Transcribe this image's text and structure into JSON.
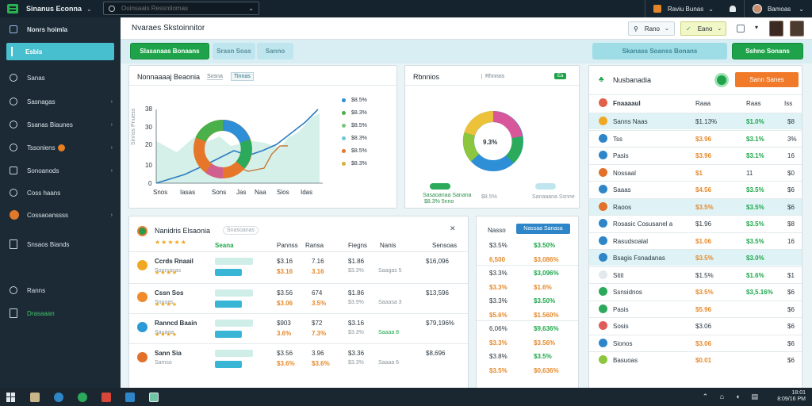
{
  "topbar": {
    "app_title": "Sinanus Econna",
    "search_placeholder": "Ouinsaais Ressntiomas",
    "right_item_1": "Raviu Bunas",
    "right_item_2": "Bamoas"
  },
  "sidebar": {
    "items": [
      {
        "label": "Nonrs hoimla"
      },
      {
        "label": "Esbis"
      },
      {
        "label": "Sanas"
      },
      {
        "label": "Sasnagas"
      },
      {
        "label": "Ssanas Biaunes"
      },
      {
        "label": "Tssoniens"
      },
      {
        "label": "Sonoanods"
      },
      {
        "label": "Coss haans"
      },
      {
        "label": "Cossaoanssss"
      },
      {
        "label": "Snsaos Biands"
      },
      {
        "label": "Ranns"
      },
      {
        "label": "Drasaaan"
      }
    ]
  },
  "header": {
    "page_title": "Nvaraes Skstoinnitor",
    "btn_1": "Rano",
    "btn_2": "Eano"
  },
  "actionbar": {
    "btn_primary": "Slasanaas Bonaans",
    "btn_2": "Srasn Soas",
    "btn_3": "Sanno",
    "btn_4": "Skanass Soanss Bonans",
    "btn_5": "Sshno Sonans"
  },
  "card1": {
    "title": "Nonnaaaaj Beaonia",
    "tab_1": "Sosna",
    "tab_2": "Tinnas",
    "y_ticks": [
      "0",
      "10",
      "20",
      "30",
      "38"
    ],
    "y_label": "Sinnss Pnuess",
    "x_ticks": [
      "Snos",
      "Iasas",
      "Sons",
      "Jas",
      "Naa",
      "Sios",
      "Idas"
    ],
    "legend": [
      "$8.5%",
      "$8.3%",
      "$8.5%",
      "$8.3%",
      "$8.5%",
      "$8.3%"
    ]
  },
  "card2": {
    "title": "Rbnnios",
    "tab": "Rhnnos",
    "badge": "Ea",
    "center_label": "9.3%",
    "caption_1": "Sasaoanaa Sanana",
    "caption_1b": "$8.3% 5nno",
    "caption_2": "$8.5%",
    "caption_3": "Sanaaana Ssnne"
  },
  "card3": {
    "title": "Nanidris Elsaonia",
    "subtitle": "Snasoanas",
    "columns": [
      "Seana",
      "Pannss",
      "Ransa",
      "Fiegns",
      "Nanis",
      "Sensoas"
    ],
    "rows": [
      {
        "name": "Ccrds Rnaail",
        "sub": "Sonrsasas",
        "col2": "$3.16",
        "col3": "7.16",
        "col4": "$1.86",
        "col5": "$16,096",
        "sub2": "$3.16",
        "sub3": "3.16",
        "sub4": "$3.3%",
        "sub5": "Saagas 5"
      },
      {
        "name": "Cssn Sos",
        "sub": "Snnoas",
        "col2": "$3.56",
        "col3": "674",
        "col4": "$1.86",
        "col5": "$13,596",
        "sub2": "$3.06",
        "sub3": "3.5%",
        "sub4": "$3.9%",
        "sub5": "Saaasa 3"
      },
      {
        "name": "Ranncd Baain",
        "sub": "Sauaoa",
        "col2": "$903",
        "col3": "$72",
        "col4": "$3.16",
        "col5": "$79,196%",
        "sub2": "3.6%",
        "sub3": "7.3%",
        "sub4": "$3.3%",
        "sub5": "Saaaa 8"
      },
      {
        "name": "Sann Sia",
        "sub": "Samso",
        "col2": "$3.56",
        "col3": "3.96",
        "col4": "$3.36",
        "col5": "$8,696",
        "sub2": "$3.6%",
        "sub3": "$3.6%",
        "sub4": "$3.3%",
        "sub5": "Saaaa 6"
      }
    ]
  },
  "card4": {
    "tab_1": "Nasso",
    "tab_active": "Nassaa Sanasa",
    "rows": [
      {
        "a": "$3.5%",
        "b": "$3.50%"
      },
      {
        "a": "6,500",
        "b": "$3,086%"
      },
      {
        "a": "$3.3%",
        "b": "$3,096%"
      },
      {
        "a": "$3.3%",
        "b": "$1.6%"
      },
      {
        "a": "$3.3%",
        "b": "$3.50%"
      },
      {
        "a": "$5.6%",
        "b": "$1.560%"
      },
      {
        "a": "6,06%",
        "b": "$9,636%"
      },
      {
        "a": "$3.3%",
        "b": "$3.56%"
      },
      {
        "a": "$3.8%",
        "b": "$3.5%"
      },
      {
        "a": "$3.5%",
        "b": "$0,636%"
      }
    ]
  },
  "card5": {
    "title": "Nusbanadia",
    "button": "Sann Sanes",
    "columns": [
      "Fnaaaaul",
      "Raaa",
      "Raas",
      "Iss"
    ],
    "rows": [
      {
        "name": "Sanns Naas",
        "a": "$1.13%",
        "b": "$1.0%",
        "c": "$8"
      },
      {
        "name": "Tss",
        "a": "$3.96",
        "b": "$3.1%",
        "c": "3%"
      },
      {
        "name": "Pasis",
        "a": "$3.96",
        "b": "$3.1%",
        "c": "16"
      },
      {
        "name": "Nossaal",
        "a": "$1",
        "b": "11",
        "c": "$0"
      },
      {
        "name": "Saaas",
        "a": "$4.56",
        "b": "$3.5%",
        "c": "$6"
      },
      {
        "name": "Raoos",
        "a": "$3.5%",
        "b": "$3.5%",
        "c": "$6"
      },
      {
        "name": "Rosasic Cosusanel a",
        "a": "$1.96",
        "b": "$3.5%",
        "c": "$8"
      },
      {
        "name": "Rasudsoalal",
        "a": "$1.06",
        "b": "$3.5%",
        "c": "16"
      },
      {
        "name": "Bsagis Fsnadanas",
        "a": "$3.5%",
        "b": "$3.0%",
        "c": ""
      },
      {
        "name": "Sitit",
        "a": "$1.5%",
        "b": "$1.6%",
        "c": "$1"
      },
      {
        "name": "Ssnsidnos",
        "a": "$3.5%",
        "b": "$3,5.16%",
        "c": "$6"
      },
      {
        "name": "Pasis",
        "a": "$5.96",
        "b": "",
        "c": "$6"
      },
      {
        "name": "Sosis",
        "a": "$3.06",
        "b": "",
        "c": "$6"
      },
      {
        "name": "Sionos",
        "a": "$3.06",
        "b": "",
        "c": "$6"
      },
      {
        "name": "Basuoas",
        "a": "$0.01",
        "b": "",
        "c": "$6"
      }
    ]
  },
  "taskbar": {
    "tray_line_1": "18:01",
    "tray_line_2": "8:09/16 PM"
  }
}
